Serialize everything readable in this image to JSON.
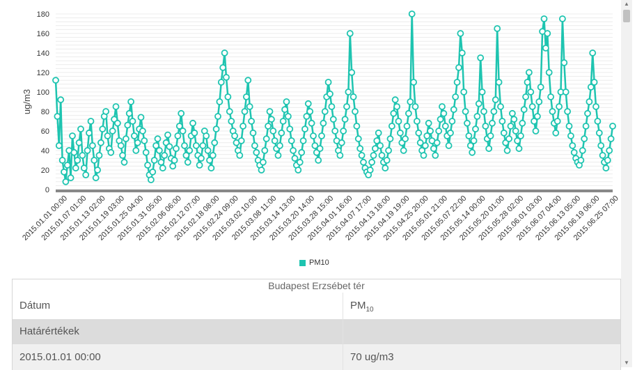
{
  "chart_data": {
    "type": "line",
    "series_name": "PM10",
    "color": "#1ec4b0",
    "ylabel": "ug/m3",
    "ylim": [
      0,
      180
    ],
    "yticks": [
      0,
      20,
      40,
      60,
      80,
      100,
      120,
      140,
      160,
      180
    ],
    "x_tick_labels": [
      "2015.01.01 00:00",
      "2015.01.07 01:00",
      "2015.01.13 02:00",
      "2015.01.19 03:00",
      "2015.01.25 04:00",
      "2015.01.31 05:00",
      "2015.02.06 06:00",
      "2015.02.12 07:00",
      "2015.02.18 08:00",
      "2015.02.24 09:00",
      "2015.03.02 10:00",
      "2015.03.08 11:00",
      "2015.03.14 13:00",
      "2015.03.20 14:00",
      "2015.03.28 15:00",
      "2015.04.01 16:00",
      "2015.04.07 17:00",
      "2015.04.13 18:00",
      "2015.04.19 19:00",
      "2015.04.25 20:00",
      "2015.05.01 21:00",
      "2015.05.07 22:00",
      "2015.05.14 00:00",
      "2015.05.20 01:00",
      "2015.05.28 02:00",
      "2015.06.01 03:00",
      "2015.06.07 04:00",
      "2015.06.13 05:00",
      "2015.06.19 06:00",
      "2015.06.25 07:00"
    ],
    "values": [
      112,
      75,
      45,
      92,
      30,
      18,
      8,
      25,
      40,
      12,
      55,
      38,
      22,
      30,
      48,
      62,
      35,
      22,
      15,
      40,
      58,
      70,
      45,
      30,
      12,
      20,
      35,
      48,
      62,
      75,
      80,
      55,
      42,
      38,
      60,
      72,
      85,
      68,
      50,
      45,
      35,
      28,
      52,
      66,
      78,
      90,
      70,
      55,
      40,
      48,
      62,
      74,
      60,
      50,
      38,
      25,
      15,
      10,
      18,
      30,
      45,
      52,
      40,
      28,
      22,
      35,
      48,
      56,
      44,
      32,
      24,
      30,
      42,
      55,
      65,
      78,
      60,
      45,
      35,
      28,
      40,
      55,
      68,
      58,
      45,
      35,
      25,
      32,
      45,
      60,
      55,
      40,
      30,
      22,
      35,
      48,
      62,
      75,
      90,
      110,
      125,
      140,
      115,
      95,
      80,
      70,
      60,
      55,
      48,
      40,
      35,
      50,
      65,
      80,
      95,
      112,
      85,
      70,
      58,
      45,
      38,
      30,
      25,
      20,
      28,
      40,
      52,
      65,
      80,
      72,
      60,
      50,
      42,
      35,
      45,
      58,
      70,
      82,
      90,
      75,
      62,
      50,
      40,
      32,
      25,
      20,
      28,
      38,
      50,
      62,
      75,
      88,
      80,
      68,
      55,
      45,
      38,
      30,
      42,
      55,
      68,
      80,
      95,
      110,
      98,
      85,
      72,
      60,
      50,
      40,
      35,
      48,
      60,
      72,
      85,
      100,
      160,
      120,
      95,
      80,
      65,
      52,
      42,
      35,
      28,
      22,
      18,
      15,
      20,
      28,
      35,
      42,
      50,
      58,
      45,
      35,
      28,
      22,
      30,
      40,
      52,
      65,
      78,
      92,
      85,
      70,
      58,
      48,
      40,
      52,
      65,
      78,
      90,
      180,
      110,
      85,
      70,
      58,
      48,
      40,
      35,
      45,
      55,
      68,
      60,
      50,
      42,
      35,
      48,
      60,
      72,
      85,
      78,
      65,
      55,
      45,
      58,
      70,
      82,
      95,
      110,
      125,
      160,
      140,
      100,
      80,
      68,
      55,
      45,
      38,
      50,
      62,
      75,
      88,
      135,
      100,
      80,
      65,
      52,
      42,
      55,
      68,
      80,
      92,
      165,
      110,
      85,
      70,
      58,
      48,
      40,
      52,
      65,
      78,
      72,
      60,
      50,
      42,
      55,
      68,
      82,
      95,
      110,
      120,
      100,
      85,
      70,
      60,
      75,
      90,
      105,
      162,
      175,
      145,
      160,
      120,
      95,
      80,
      68,
      58,
      70,
      85,
      100,
      175,
      130,
      100,
      80,
      65,
      55,
      45,
      38,
      32,
      28,
      25,
      30,
      40,
      52,
      65,
      78,
      90,
      105,
      140,
      110,
      85,
      70,
      58,
      45,
      35,
      28,
      22,
      30,
      40,
      52,
      65
    ]
  },
  "legend": {
    "label": "PM10"
  },
  "table": {
    "caption": "Budapest Erzsébet tér",
    "col1_header": "Dátum",
    "col2_header_main": "PM",
    "col2_header_sub": "10",
    "limit_row_label": "Határértékek",
    "rows": [
      {
        "date": "2015.01.01 00:00",
        "value": "70 ug/m3"
      }
    ]
  },
  "scrollbar": {
    "up_icon": "▲",
    "down_icon": "▼"
  }
}
